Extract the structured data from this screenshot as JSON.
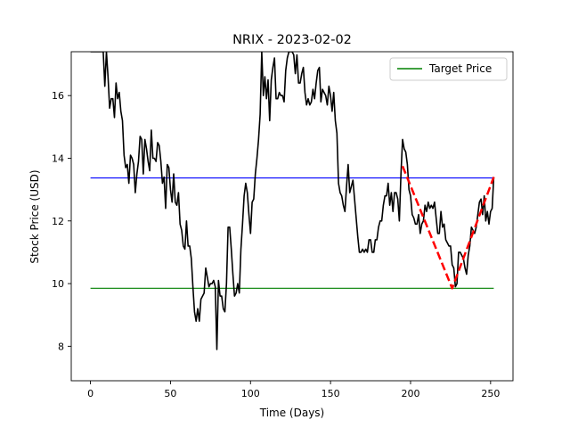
{
  "chart_data": {
    "type": "line",
    "title": "NRIX - 2023-02-02",
    "xlabel": "Time (Days)",
    "ylabel": "Stock Price (USD)",
    "xlim": [
      -12,
      264
    ],
    "ylim": [
      6.9,
      17.4
    ],
    "xticks": [
      0,
      50,
      100,
      150,
      200,
      250
    ],
    "yticks": [
      8,
      10,
      12,
      14,
      16
    ],
    "grid": false,
    "legend": {
      "position": "top-right",
      "entries": [
        {
          "label": "Target Price",
          "color": "#008000"
        }
      ]
    },
    "series": [
      {
        "color": "#000000",
        "style": "solid",
        "x": [
          0,
          2,
          4,
          6,
          7,
          8,
          9,
          10,
          11,
          12,
          13,
          14,
          15,
          16,
          17,
          18,
          19,
          20,
          21,
          22,
          23,
          24,
          25,
          26,
          27,
          28,
          29,
          30,
          31,
          32,
          33,
          34,
          35,
          36,
          37,
          38,
          39,
          40,
          41,
          42,
          43,
          44,
          45,
          46,
          47,
          48,
          49,
          50,
          51,
          52,
          53,
          54,
          55,
          56,
          57,
          58,
          59,
          60,
          61,
          62,
          63,
          64,
          65,
          66,
          67,
          68,
          69,
          70,
          71,
          72,
          73,
          74,
          75,
          76,
          77,
          78,
          79,
          80,
          81,
          82,
          83,
          84,
          85,
          86,
          87,
          88,
          89,
          90,
          91,
          92,
          93,
          94,
          95,
          96,
          97,
          98,
          99,
          100,
          101,
          102,
          103,
          104,
          105,
          106,
          107,
          108,
          109,
          110,
          111,
          112,
          113,
          114,
          115,
          116,
          117,
          118,
          119,
          120,
          121,
          122,
          123,
          124,
          125,
          126,
          127,
          128,
          129,
          130,
          131,
          132,
          133,
          134,
          135,
          136,
          137,
          138,
          139,
          140,
          141,
          142,
          143,
          144,
          145,
          146,
          147,
          148,
          149,
          150,
          151,
          152,
          153,
          154,
          155,
          156,
          157,
          158,
          159,
          160,
          161,
          162,
          163,
          164,
          165,
          166,
          167,
          168,
          169,
          170,
          171,
          172,
          173,
          174,
          175,
          176,
          177,
          178,
          179,
          180,
          181,
          182,
          183,
          184,
          185,
          186,
          187,
          188,
          189,
          190,
          191,
          192,
          193,
          194,
          195,
          196,
          197,
          198,
          199,
          200,
          201,
          202,
          203,
          204,
          205,
          206,
          207,
          208,
          209,
          210,
          211,
          212,
          213,
          214,
          215,
          216,
          217,
          218,
          219,
          220,
          221,
          222,
          223,
          224,
          225,
          226,
          227,
          228,
          229,
          230,
          231,
          232,
          233,
          234,
          235,
          236,
          237,
          238,
          239,
          240,
          241,
          242,
          243,
          244,
          245,
          246,
          247,
          248,
          249,
          250,
          251,
          252
        ],
        "values": [
          17.4,
          17.4,
          17.4,
          17.4,
          17.4,
          17.4,
          16.3,
          17.4,
          16.6,
          15.6,
          15.9,
          15.9,
          15.3,
          16.4,
          15.9,
          16.1,
          15.5,
          15.2,
          14.1,
          13.7,
          13.8,
          13.2,
          14.1,
          14.0,
          13.8,
          12.9,
          13.5,
          13.9,
          14.7,
          14.6,
          13.5,
          14.6,
          14.3,
          13.9,
          13.6,
          14.9,
          14.0,
          14.0,
          13.9,
          14.5,
          14.4,
          13.9,
          13.2,
          13.4,
          12.4,
          13.8,
          13.7,
          13.0,
          12.6,
          13.5,
          12.6,
          12.5,
          12.9,
          11.9,
          11.7,
          11.2,
          11.1,
          12.0,
          11.2,
          11.2,
          10.8,
          9.9,
          9.1,
          8.8,
          9.2,
          8.8,
          9.5,
          9.6,
          9.7,
          10.5,
          10.2,
          9.9,
          10.0,
          10.0,
          10.1,
          9.9,
          7.9,
          10.1,
          9.6,
          9.6,
          9.2,
          9.1,
          10.0,
          11.8,
          11.8,
          11.1,
          10.3,
          9.6,
          9.7,
          10.0,
          9.7,
          11.1,
          11.9,
          12.8,
          13.2,
          12.9,
          12.2,
          11.6,
          12.6,
          12.7,
          13.5,
          14.0,
          14.6,
          15.4,
          17.4,
          16.0,
          16.6,
          15.9,
          16.5,
          15.2,
          16.5,
          16.9,
          17.2,
          15.9,
          15.9,
          16.1,
          16.0,
          16.0,
          15.8,
          16.8,
          17.2,
          17.4,
          17.4,
          17.4,
          17.3,
          16.7,
          17.3,
          16.4,
          16.4,
          16.7,
          16.9,
          16.1,
          15.7,
          15.9,
          15.7,
          15.8,
          16.2,
          15.9,
          16.4,
          16.8,
          16.9,
          15.8,
          16.2,
          16.1,
          16.0,
          15.7,
          16.3,
          16.0,
          15.5,
          16.1,
          15.2,
          14.8,
          13.2,
          12.9,
          12.8,
          12.5,
          12.3,
          13.1,
          13.8,
          12.9,
          13.1,
          13.3,
          12.7,
          12.1,
          11.5,
          11.0,
          11.0,
          11.1,
          11.0,
          11.1,
          11.0,
          11.4,
          11.4,
          11.0,
          11.0,
          11.4,
          11.4,
          11.8,
          12.0,
          12.0,
          12.5,
          12.8,
          12.8,
          13.2,
          12.5,
          12.9,
          12.3,
          12.9,
          12.9,
          12.7,
          12.0,
          13.5,
          14.6,
          14.3,
          14.2,
          13.8,
          13.0,
          12.8,
          12.2,
          12.1,
          11.9,
          11.9,
          12.2,
          11.6,
          11.9,
          12.0,
          12.5,
          12.3,
          12.6,
          12.4,
          12.5,
          12.4,
          12.6,
          12.1,
          11.6,
          11.6,
          12.3,
          11.8,
          11.9,
          11.4,
          11.3,
          11.2,
          11.2,
          10.6,
          10.5,
          9.9,
          10.0,
          11.0,
          11.0,
          10.9,
          10.8,
          10.5,
          10.3,
          10.9,
          11.2,
          11.8,
          11.7,
          11.6,
          11.8,
          12.2,
          12.6,
          12.7,
          12.2,
          12.8,
          12.0,
          12.3,
          11.9,
          12.3,
          12.4,
          13.4
        ]
      },
      {
        "color": "#ff0000",
        "style": "dashed",
        "x": [
          195,
          226,
          252
        ],
        "values": [
          13.75,
          9.85,
          13.4
        ]
      },
      {
        "name": "Target Price",
        "color": "#008000",
        "style": "solid",
        "x": [
          0,
          252
        ],
        "values": [
          9.85,
          9.85
        ]
      },
      {
        "color": "#0000ff",
        "style": "solid",
        "x": [
          0,
          252
        ],
        "values": [
          13.37,
          13.37
        ]
      }
    ]
  }
}
